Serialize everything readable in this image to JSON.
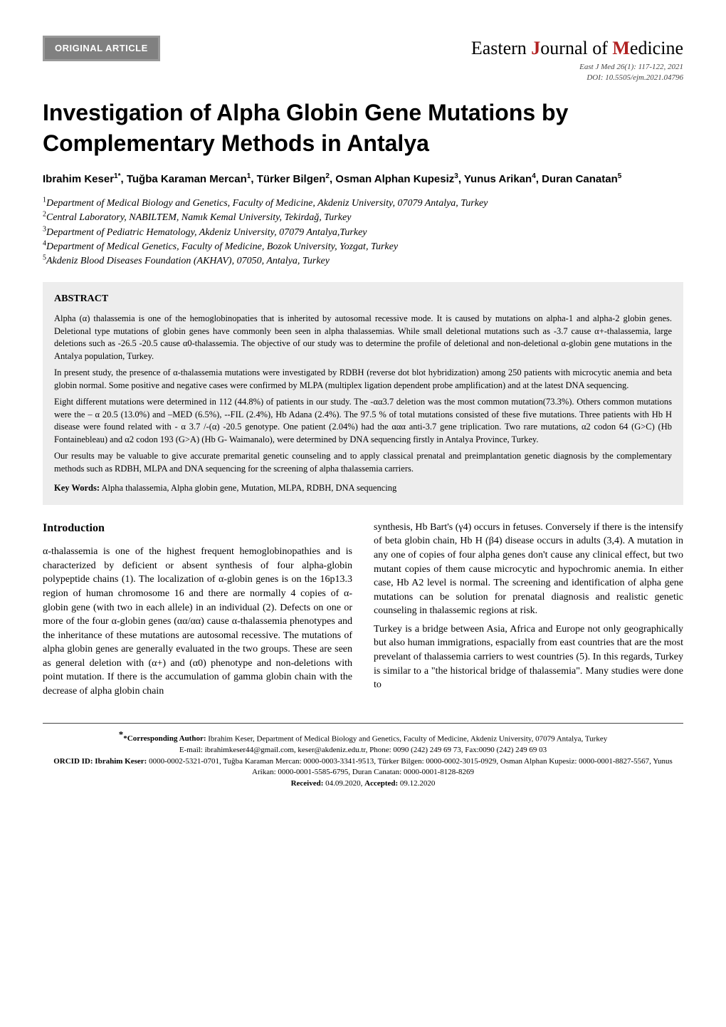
{
  "header": {
    "badge_label": "ORIGINAL ARTICLE",
    "journal_prefix": "Eastern",
    "journal_accent": "J",
    "journal_rest": "ournal of",
    "journal_accent2": "M",
    "journal_rest2": "edicine",
    "issue_line": "East J Med 26(1): 117-122, 2021",
    "doi_line": "DOI: 10.5505/ejm.2021.04796"
  },
  "title": "Investigation of Alpha Globin Gene Mutations by Complementary Methods in Antalya",
  "authors_line": "Ibrahim Keser1*, Tuğba Karaman Mercan1, Türker Bilgen2, Osman Alphan Kupesiz3, Yunus Arikan4, Duran Canatan5",
  "authors_parts": [
    {
      "name": "Ibrahim Keser",
      "aff": "1*"
    },
    {
      "name": ", Tuğba Karaman Mercan",
      "aff": "1"
    },
    {
      "name": ", Türker Bilgen",
      "aff": "2"
    },
    {
      "name": ", Osman Alphan Kupesiz",
      "aff": "3"
    },
    {
      "name": ", Yunus Arikan",
      "aff": "4"
    },
    {
      "name": ", Duran Canatan",
      "aff": "5"
    }
  ],
  "affiliations": [
    {
      "num": "1",
      "text": "Department of Medical Biology and Genetics, Faculty of Medicine, Akdeniz University, 07079 Antalya, Turkey"
    },
    {
      "num": "2",
      "text": "Central Laboratory, NABILTEM, Namık Kemal University, Tekirdağ, Turkey"
    },
    {
      "num": "3",
      "text": "Department of Pediatric Hematology, Akdeniz University, 07079 Antalya,Turkey"
    },
    {
      "num": "4",
      "text": "Department of Medical Genetics, Faculty of Medicine, Bozok University, Yozgat, Turkey"
    },
    {
      "num": "5",
      "text": "Akdeniz Blood Diseases Foundation (AKHAV), 07050, Antalya, Turkey"
    }
  ],
  "abstract": {
    "heading": "ABSTRACT",
    "paragraphs": [
      "Alpha (α) thalassemia is one of the hemoglobinopaties that is inherited by autosomal recessive mode. It is caused by mutations on alpha-1 and alpha-2 globin genes. Deletional type mutations of globin genes have commonly been seen in alpha thalassemias. While small deletional mutations such as -3.7 cause α+-thalassemia, large deletions such as -26.5 -20.5 cause α0-thalassemia. The objective of our study was to determine the profile of deletional and non-deletional α-globin gene mutations in the Antalya population, Turkey.",
      "In present study, the presence of α-thalassemia mutations were investigated by RDBH (reverse dot blot hybridization) among 250 patients with microcytic anemia and beta globin normal. Some positive and negative cases were confirmed by MLPA (multiplex ligation dependent probe amplification) and at the latest DNA sequencing.",
      "Eight different mutations were determined in 112 (44.8%) of patients in our study. The -αα3.7 deletion was the most common mutation(73.3%). Others common mutations were the – α 20.5 (13.0%) and –MED (6.5%), --FIL (2.4%), Hb Adana (2.4%). The 97.5 % of total mutations consisted of these five mutations. Three patients with Hb H disease were found related with - α 3.7 /-(α) -20.5 genotype. One patient (2.04%) had the ααα anti-3.7 gene triplication. Two rare mutations, α2 codon 64 (G>C) (Hb Fontainebleau) and α2 codon 193 (G>A) (Hb G- Waimanalo), were determined by DNA sequencing firstly in Antalya Province, Turkey.",
      "Our results may be valuable to give accurate premarital genetic counseling and to apply classical prenatal and preimplantation genetic diagnosis by the complementary methods such as RDBH, MLPA and DNA sequencing for the screening of alpha thalassemia carriers."
    ],
    "keywords_label": "Key Words:",
    "keywords_text": "  Alpha thalassemia, Alpha globin gene, Mutation, MLPA, RDBH, DNA sequencing"
  },
  "body": {
    "intro_heading": "Introduction",
    "left_col": "α-thalassemia is one of the highest frequent hemoglobinopathies and is characterized by deficient or absent synthesis of four alpha-globin polypeptide chains (1). The localization of α-globin genes is on the 16p13.3 region of human chromosome 16 and there are normally 4 copies of α- globin gene (with two in each allele) in an individual (2). Defects on one or more of the four α-globin genes (αα/αα) cause α-thalassemia phenotypes and the inheritance of these mutations are autosomal recessive. The mutations of alpha globin genes are generally evaluated in the two groups. These are seen as general deletion with (α+) and (α0) phenotype and non-deletions with point mutation. If there is the accumulation of gamma globin chain with the decrease of alpha globin chain",
    "right_col": "synthesis, Hb Bart's (γ4) occurs in fetuses. Conversely if there is the intensify of beta globin chain, Hb H (β4) disease occurs in adults (3,4). A mutation in any one of copies of four alpha genes don't cause any clinical effect, but two mutant copies of them cause microcytic and hypochromic anemia. In either case, Hb A2 level is normal. The screening and identification of alpha gene mutations can be solution for prenatal diagnosis and realistic genetic counseling in thalassemic regions at risk.",
    "right_col2": "Turkey is a bridge between Asia, Africa and Europe not only geographically but also human immigrations, espacially from east countries that are the most prevelant of thalassemia carriers to west countries (5). In this regards, Turkey is similar to a \"the historical bridge of thalassemia\". Many studies were done to"
  },
  "footnotes": {
    "corr_label": "*Corresponding Author:",
    "corr_text": " Ibrahim Keser, Department of Medical Biology and Genetics, Faculty of Medicine, Akdeniz University, 07079 Antalya, Turkey",
    "email_line": "E-mail: ibrahimkeser44@gmail.com, keser@akdeniz.edu.tr, Phone: 0090 (242) 249 69 73, Fax:0090 (242) 249 69 03",
    "orcid_label": "ORCID ID: Ibrahim Keser:",
    "orcid_rest": " 0000-0002-5321-0701, Tuğba Karaman Mercan: 0000-0003-3341-9513, Türker Bilgen: 0000-0002-3015-0929, Osman Alphan Kupesiz: 0000-0001-8827-5567, Yunus Arikan: 0000-0001-5585-6795, Duran Canatan: 0000-0001-8128-8269",
    "received_label": "Received:",
    "received_text": " 04.09.2020, ",
    "accepted_label": "Accepted:",
    "accepted_text": " 09.12.2020"
  },
  "colors": {
    "badge_bg": "#808080",
    "badge_border": "#999999",
    "accent_red": "#b22222",
    "abstract_bg": "#ededed"
  }
}
